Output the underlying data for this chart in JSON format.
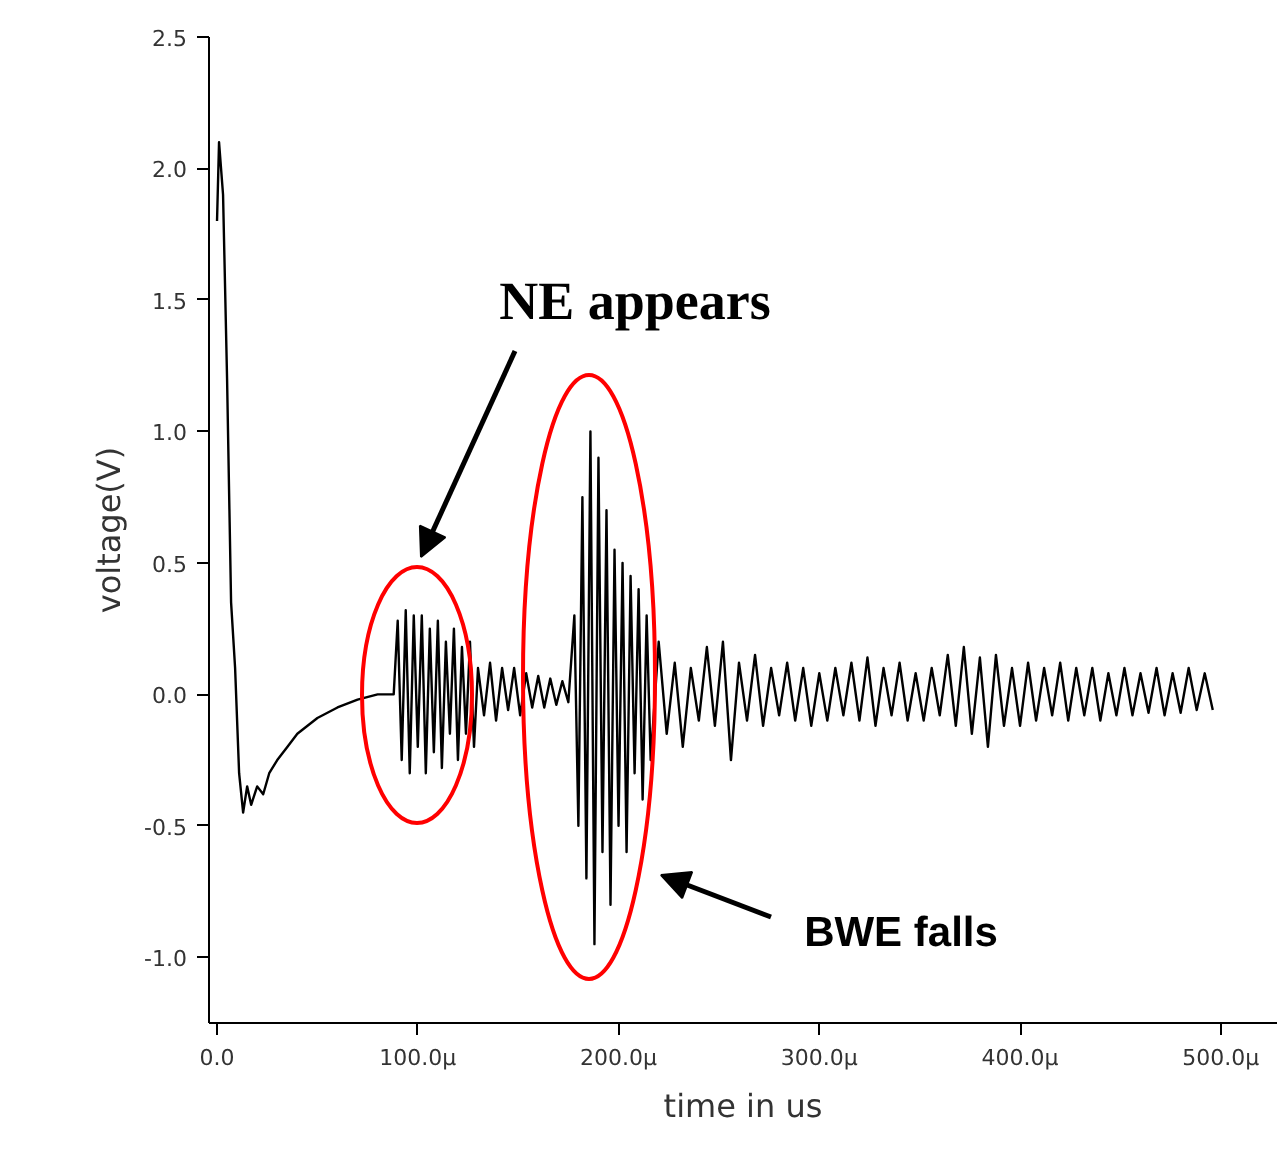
{
  "chart_data": {
    "type": "line",
    "xlabel": "time in us",
    "ylabel": "voltage(V)",
    "x": [
      0,
      1,
      3,
      5,
      7,
      9,
      11,
      13,
      15,
      17,
      20,
      23,
      26,
      30,
      35,
      40,
      50,
      60,
      70,
      80,
      88,
      90,
      92,
      94,
      96,
      98,
      100,
      102,
      104,
      106,
      108,
      110,
      112,
      114,
      116,
      118,
      120,
      122,
      124,
      126,
      128,
      130,
      133,
      136,
      139,
      142,
      145,
      148,
      151,
      154,
      157,
      160,
      163,
      166,
      169,
      172,
      175,
      178,
      180,
      182,
      184,
      186,
      188,
      190,
      192,
      194,
      196,
      198,
      200,
      202,
      204,
      206,
      208,
      210,
      212,
      214,
      216,
      220,
      224,
      228,
      232,
      236,
      240,
      244,
      248,
      252,
      256,
      260,
      264,
      268,
      272,
      276,
      280,
      284,
      288,
      292,
      296,
      300,
      304,
      308,
      312,
      316,
      320,
      324,
      328,
      332,
      336,
      340,
      344,
      348,
      352,
      356,
      360,
      364,
      368,
      372,
      376,
      380,
      384,
      388,
      392,
      396,
      400,
      404,
      408,
      412,
      416,
      420,
      424,
      428,
      432,
      436,
      440,
      444,
      448,
      452,
      456,
      460,
      464,
      468,
      472,
      476,
      480,
      484,
      488,
      492,
      496
    ],
    "series": [
      {
        "color": "#000000",
        "values": [
          1.8,
          2.1,
          1.9,
          1.2,
          0.35,
          0.1,
          -0.3,
          -0.45,
          -0.35,
          -0.42,
          -0.35,
          -0.38,
          -0.3,
          -0.25,
          -0.2,
          -0.15,
          -0.09,
          -0.05,
          -0.02,
          0.0,
          0.0,
          0.28,
          -0.25,
          0.32,
          -0.3,
          0.3,
          -0.2,
          0.3,
          -0.3,
          0.25,
          -0.22,
          0.28,
          -0.28,
          0.2,
          -0.15,
          0.25,
          -0.25,
          0.18,
          -0.15,
          0.2,
          -0.2,
          0.1,
          -0.08,
          0.12,
          -0.1,
          0.1,
          -0.06,
          0.1,
          -0.08,
          0.08,
          -0.05,
          0.07,
          -0.05,
          0.06,
          -0.04,
          0.05,
          -0.03,
          0.3,
          -0.5,
          0.75,
          -0.7,
          1.0,
          -0.95,
          0.9,
          -0.6,
          0.7,
          -0.8,
          0.55,
          -0.5,
          0.5,
          -0.6,
          0.45,
          -0.3,
          0.4,
          -0.4,
          0.3,
          -0.25,
          0.2,
          -0.15,
          0.12,
          -0.2,
          0.1,
          -0.1,
          0.18,
          -0.12,
          0.2,
          -0.25,
          0.12,
          -0.1,
          0.15,
          -0.12,
          0.1,
          -0.08,
          0.12,
          -0.1,
          0.1,
          -0.12,
          0.08,
          -0.1,
          0.1,
          -0.08,
          0.12,
          -0.1,
          0.14,
          -0.12,
          0.1,
          -0.08,
          0.12,
          -0.1,
          0.08,
          -0.1,
          0.1,
          -0.08,
          0.15,
          -0.12,
          0.18,
          -0.15,
          0.14,
          -0.2,
          0.15,
          -0.12,
          0.1,
          -0.12,
          0.12,
          -0.1,
          0.1,
          -0.08,
          0.12,
          -0.1,
          0.1,
          -0.08,
          0.1,
          -0.1,
          0.08,
          -0.08,
          0.1,
          -0.08,
          0.08,
          -0.07,
          0.1,
          -0.08,
          0.08,
          -0.07,
          0.1,
          -0.06,
          0.08,
          -0.06
        ]
      }
    ],
    "xlim": [
      -4,
      528
    ],
    "ylim": [
      -1.25,
      2.5
    ],
    "xticks": [
      {
        "value": 0,
        "label": "0.0"
      },
      {
        "value": 100,
        "label": "100.0μ"
      },
      {
        "value": 200,
        "label": "200.0μ"
      },
      {
        "value": 300,
        "label": "300.0μ"
      },
      {
        "value": 400,
        "label": "400.0μ"
      },
      {
        "value": 500,
        "label": "500.0μ"
      }
    ],
    "yticks": [
      {
        "value": -1,
        "label": "-1.0"
      },
      {
        "value": -0.5,
        "label": "-0.5"
      },
      {
        "value": 0,
        "label": "0.0"
      },
      {
        "value": 0.5,
        "label": "0.5"
      },
      {
        "value": 1,
        "label": "1.0"
      },
      {
        "value": 1.5,
        "label": "1.5"
      },
      {
        "value": 2,
        "label": "2.0"
      },
      {
        "value": 2.5,
        "label": "2.5"
      }
    ],
    "grid": false,
    "marker": "none",
    "line_style": "solid",
    "annotations": [
      "NE appears",
      "BWE falls"
    ]
  }
}
